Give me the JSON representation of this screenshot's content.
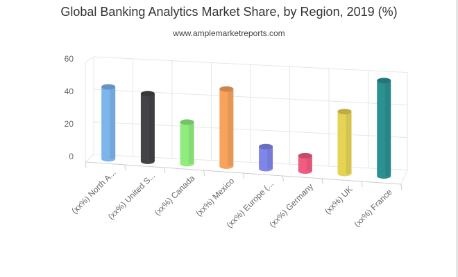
{
  "header": {
    "title": "Global Banking Analytics Market Share, by Region, 2019 (%)",
    "subtitle": "www.amplemarketreports.com"
  },
  "chart_data": {
    "type": "bar",
    "style": "3d-cylinder",
    "title": "Global Banking Analytics Market Share, by Region, 2019 (%)",
    "subtitle": "www.amplemarketreports.com",
    "xlabel": "",
    "ylabel": "",
    "ylim": [
      0,
      60
    ],
    "yticks": [
      0,
      20,
      40,
      60
    ],
    "grid": true,
    "legend": "none",
    "categories": [
      "(xx%) North A...",
      "(xx%) United S...",
      "(xx%) Canada",
      "(xx%) Mexico",
      "(xx%) Europe (...",
      "(xx%) Germany",
      "(xx%) UK",
      "(xx%) France"
    ],
    "values": [
      44,
      41,
      25,
      46,
      13,
      9,
      36,
      55
    ],
    "colors": [
      "#7cb5ec",
      "#434348",
      "#90ed7d",
      "#f7a35c",
      "#8085e9",
      "#f15c80",
      "#e4d354",
      "#2b908f"
    ]
  }
}
